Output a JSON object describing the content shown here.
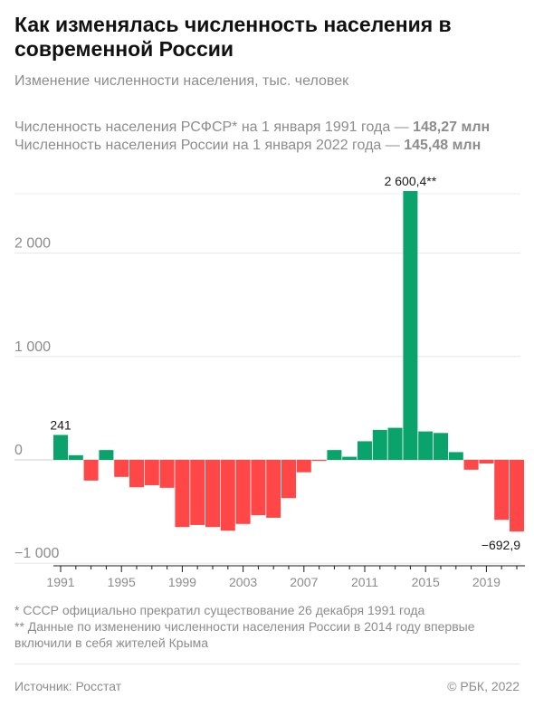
{
  "title": "Как изменялась численность населения в современной России",
  "subtitle": "Изменение численности населения, тыс. человек",
  "info": [
    {
      "text": "Численность населения РСФСР* на 1 января 1991 года — ",
      "value": "148,27 млн"
    },
    {
      "text": "Численность населения России на 1 января 2022 года — ",
      "value": "145,48 млн"
    }
  ],
  "notes": [
    "* СССР официально прекратил существование 26 декабря 1991 года",
    "** Данные по изменению численности населения России в 2014 году впервые включили в себя жителей Крыма"
  ],
  "footer": {
    "source": "Источник: Росстат",
    "copyright": "© РБК, 2022"
  },
  "chart_data": {
    "type": "bar",
    "title": "Как изменялась численность населения в современной России",
    "ylabel": "",
    "xlabel": "",
    "ylim": [
      -1000,
      2750
    ],
    "yticks": [
      -1000,
      0,
      1000,
      2000
    ],
    "ytick_labels": [
      "−1 000",
      "0",
      "1 000",
      "2 000"
    ],
    "xtick_labels": [
      "1991",
      "1995",
      "1999",
      "2003",
      "2007",
      "2011",
      "2015",
      "2019"
    ],
    "grid": true,
    "colors": {
      "positive": "#0aa36b",
      "negative": "#ff4747"
    },
    "categories": [
      1991,
      1992,
      1993,
      1994,
      1995,
      1996,
      1997,
      1998,
      1999,
      2000,
      2001,
      2002,
      2003,
      2004,
      2005,
      2006,
      2007,
      2008,
      2009,
      2010,
      2011,
      2012,
      2013,
      2014,
      2015,
      2016,
      2017,
      2018,
      2019,
      2020,
      2021
    ],
    "values": [
      241,
      45,
      -200,
      95,
      -165,
      -265,
      -245,
      -270,
      -650,
      -630,
      -650,
      -685,
      -620,
      -535,
      -560,
      -370,
      -120,
      -10,
      95,
      30,
      180,
      290,
      310,
      2600.4,
      275,
      260,
      75,
      -95,
      -35,
      -580,
      -692.9
    ],
    "annotations": [
      {
        "year": 1991,
        "label": "241"
      },
      {
        "year": 2014,
        "label": "2 600,4**"
      },
      {
        "year": 2021,
        "label": "−692,9"
      }
    ]
  }
}
